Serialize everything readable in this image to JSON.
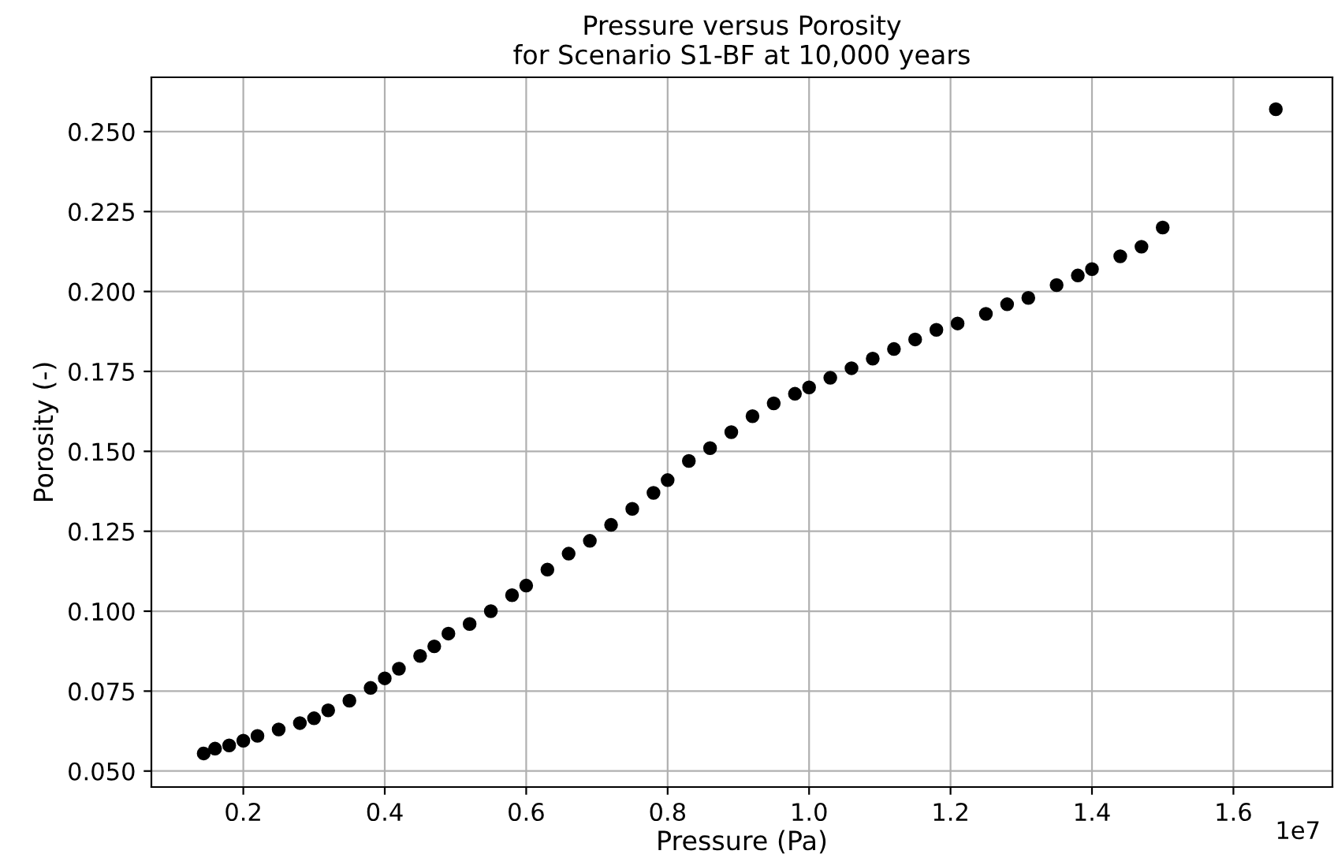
{
  "chart_data": {
    "type": "scatter",
    "title": "Pressure versus Porosity\nfor Scenario S1-BF at 10,000 years",
    "xlabel": "Pressure (Pa)",
    "ylabel": "Porosity (-)",
    "x": [
      0.144,
      0.16,
      0.18,
      0.2,
      0.22,
      0.25,
      0.28,
      0.3,
      0.32,
      0.35,
      0.38,
      0.4,
      0.42,
      0.45,
      0.47,
      0.49,
      0.52,
      0.55,
      0.58,
      0.6,
      0.63,
      0.66,
      0.69,
      0.72,
      0.75,
      0.78,
      0.8,
      0.83,
      0.86,
      0.89,
      0.92,
      0.95,
      0.98,
      1.0,
      1.03,
      1.06,
      1.09,
      1.12,
      1.15,
      1.18,
      1.21,
      1.25,
      1.28,
      1.31,
      1.35,
      1.38,
      1.4,
      1.44,
      1.47,
      1.5,
      1.66
    ],
    "series": [
      {
        "color": "#000000",
        "values": [
          0.0555,
          0.057,
          0.058,
          0.0595,
          0.061,
          0.063,
          0.065,
          0.0665,
          0.069,
          0.072,
          0.076,
          0.079,
          0.082,
          0.086,
          0.089,
          0.093,
          0.096,
          0.1,
          0.105,
          0.108,
          0.113,
          0.118,
          0.122,
          0.127,
          0.132,
          0.137,
          0.141,
          0.147,
          0.151,
          0.156,
          0.161,
          0.165,
          0.168,
          0.17,
          0.173,
          0.176,
          0.179,
          0.182,
          0.185,
          0.188,
          0.19,
          0.193,
          0.196,
          0.198,
          0.202,
          0.205,
          0.207,
          0.211,
          0.214,
          0.22,
          0.257
        ]
      }
    ],
    "marker": "circle",
    "xlim": [
      0.07,
      1.74
    ],
    "xticks": [
      0.2,
      0.4,
      0.6,
      0.8,
      {
        "value": 1.0,
        "label": "1.0"
      },
      1.2,
      1.4,
      1.6
    ],
    "ylim": [
      0.045,
      0.267
    ],
    "yticks": [
      {
        "value": 0.05,
        "label": "0.050"
      },
      {
        "value": 0.075,
        "label": "0.075"
      },
      {
        "value": 0.1,
        "label": "0.100"
      },
      {
        "value": 0.125,
        "label": "0.125"
      },
      {
        "value": 0.15,
        "label": "0.150"
      },
      {
        "value": 0.175,
        "label": "0.175"
      },
      {
        "value": 0.2,
        "label": "0.200"
      },
      {
        "value": 0.225,
        "label": "0.225"
      },
      {
        "value": 0.25,
        "label": "0.250"
      }
    ],
    "grid": true,
    "annotations": [
      "1e7"
    ]
  }
}
